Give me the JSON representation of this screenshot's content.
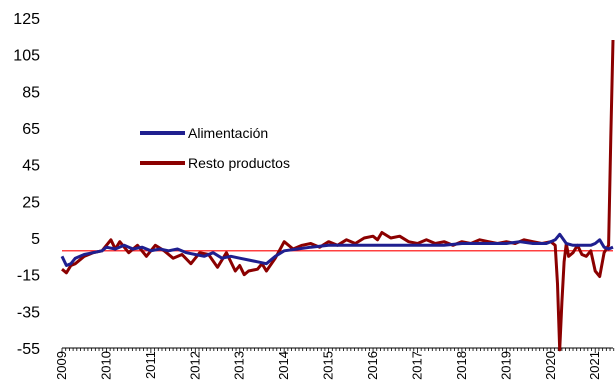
{
  "chart_data": {
    "type": "line",
    "ylim": [
      -55,
      125
    ],
    "y_ticks": [
      "125",
      "105",
      "85",
      "65",
      "45",
      "25",
      "5",
      "-15",
      "-35",
      "-55"
    ],
    "x_ticks": [
      "2009",
      "2010",
      "2011",
      "2012",
      "2013",
      "2014",
      "2015",
      "2016",
      "2017",
      "2018",
      "2019",
      "2020",
      "2021"
    ],
    "x_range": [
      2009.0,
      2021.4
    ],
    "grid": false,
    "legend_position": "center-left",
    "reference_line": {
      "y": -2,
      "color": "#ff0000"
    },
    "series": [
      {
        "name": "Alimentación",
        "color": "#1f1f8f",
        "x": [
          2009.0,
          2009.1,
          2009.2,
          2009.3,
          2009.5,
          2009.7,
          2009.9,
          2010.0,
          2010.2,
          2010.4,
          2010.6,
          2010.8,
          2011.0,
          2011.2,
          2011.4,
          2011.6,
          2011.8,
          2012.0,
          2012.2,
          2012.4,
          2012.6,
          2012.8,
          2013.0,
          2013.2,
          2013.4,
          2013.6,
          2013.8,
          2014.0,
          2014.3,
          2014.6,
          2015.0,
          2015.3,
          2015.6,
          2016.0,
          2016.3,
          2016.6,
          2017.0,
          2017.3,
          2017.6,
          2018.0,
          2018.3,
          2018.6,
          2019.0,
          2019.3,
          2019.6,
          2019.9,
          2020.0,
          2020.1,
          2020.2,
          2020.35,
          2020.5,
          2020.7,
          2020.9,
          2021.0,
          2021.1,
          2021.2,
          2021.3,
          2021.4
        ],
        "y": [
          -5,
          -10,
          -9,
          -6,
          -4,
          -3,
          -2,
          0,
          -1,
          1,
          -1,
          0,
          -2,
          -1,
          -2,
          -1,
          -3,
          -4,
          -5,
          -3,
          -6,
          -5,
          -6,
          -7,
          -8,
          -9,
          -5,
          -2,
          -1,
          0,
          1,
          1,
          1,
          1,
          1,
          1,
          1,
          1,
          1,
          2,
          2,
          2,
          2,
          3,
          2,
          2,
          3,
          4,
          7,
          2,
          1,
          1,
          1,
          2,
          4,
          0,
          -1,
          0
        ]
      },
      {
        "name": "Resto productos",
        "color": "#8b0000",
        "x": [
          2009.0,
          2009.1,
          2009.2,
          2009.3,
          2009.5,
          2009.7,
          2009.9,
          2010.1,
          2010.2,
          2010.3,
          2010.5,
          2010.7,
          2010.9,
          2011.1,
          2011.3,
          2011.5,
          2011.7,
          2011.9,
          2012.1,
          2012.3,
          2012.5,
          2012.7,
          2012.9,
          2013.0,
          2013.1,
          2013.2,
          2013.4,
          2013.5,
          2013.6,
          2013.8,
          2014.0,
          2014.2,
          2014.4,
          2014.6,
          2014.8,
          2015.0,
          2015.2,
          2015.4,
          2015.6,
          2015.8,
          2016.0,
          2016.1,
          2016.2,
          2016.4,
          2016.6,
          2016.8,
          2017.0,
          2017.2,
          2017.4,
          2017.6,
          2017.8,
          2018.0,
          2018.2,
          2018.4,
          2018.6,
          2018.8,
          2019.0,
          2019.2,
          2019.4,
          2019.6,
          2019.8,
          2020.0,
          2020.1,
          2020.15,
          2020.2,
          2020.25,
          2020.3,
          2020.35,
          2020.4,
          2020.5,
          2020.6,
          2020.7,
          2020.8,
          2020.9,
          2021.0,
          2021.1,
          2021.2,
          2021.3,
          2021.35,
          2021.4
        ],
        "y": [
          -12,
          -14,
          -10,
          -9,
          -5,
          -3,
          -2,
          4,
          -1,
          3,
          -3,
          1,
          -5,
          1,
          -2,
          -6,
          -4,
          -9,
          -3,
          -4,
          -11,
          -3,
          -13,
          -10,
          -15,
          -13,
          -12,
          -9,
          -13,
          -6,
          3,
          -1,
          1,
          2,
          0,
          3,
          1,
          4,
          2,
          5,
          6,
          4,
          8,
          5,
          6,
          3,
          2,
          4,
          2,
          3,
          1,
          3,
          2,
          4,
          3,
          2,
          3,
          2,
          4,
          3,
          2,
          3,
          1,
          -20,
          -56,
          -30,
          -8,
          2,
          -5,
          -3,
          1,
          -4,
          -5,
          -2,
          -13,
          -16,
          -3,
          1,
          60,
          113
        ]
      }
    ]
  }
}
